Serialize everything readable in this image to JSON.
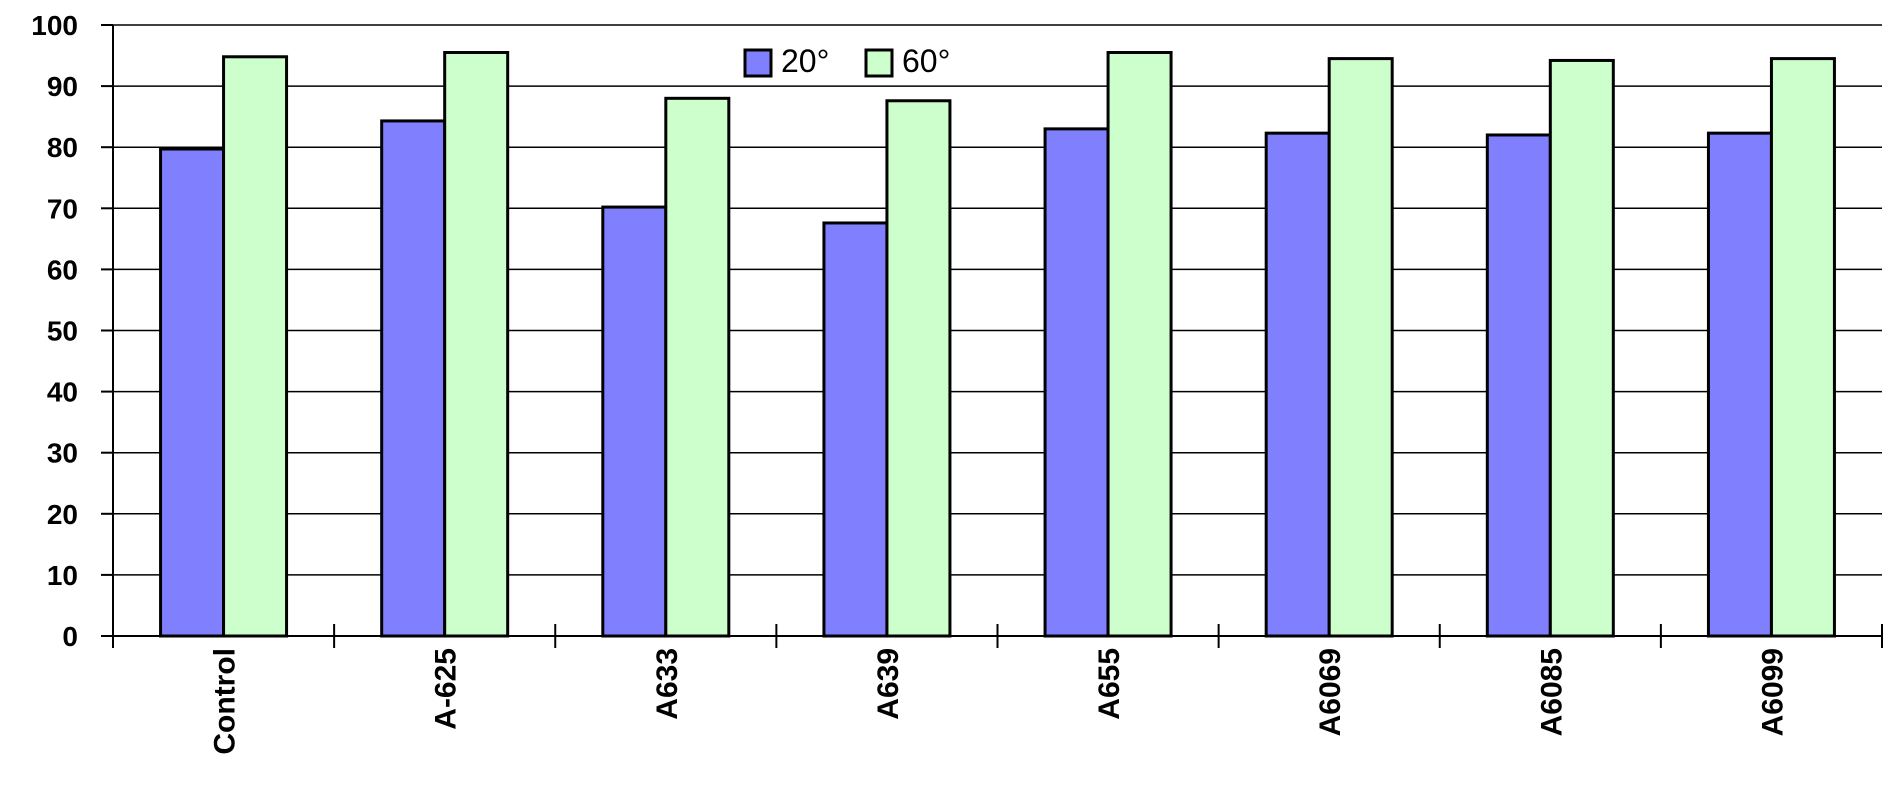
{
  "chart_data": {
    "type": "bar",
    "categories": [
      "Control",
      "A-625",
      "A633",
      "A639",
      "A655",
      "A6069",
      "A6085",
      "A6099"
    ],
    "series": [
      {
        "name": "20°",
        "color": "#8080ff",
        "values": [
          79.7,
          84.3,
          70.2,
          67.6,
          83.0,
          82.3,
          82.0,
          82.3
        ]
      },
      {
        "name": "60°",
        "color": "#ccffcc",
        "values": [
          94.8,
          95.5,
          88.0,
          87.6,
          95.5,
          94.5,
          94.2,
          94.5
        ]
      }
    ],
    "yticks": [
      "0",
      "10",
      "20",
      "30",
      "40",
      "50",
      "60",
      "70",
      "80",
      "90",
      "100"
    ],
    "ylim": [
      0,
      100
    ],
    "grid": true,
    "legend_position": "top-center",
    "title": "",
    "xlabel": "",
    "ylabel": ""
  }
}
